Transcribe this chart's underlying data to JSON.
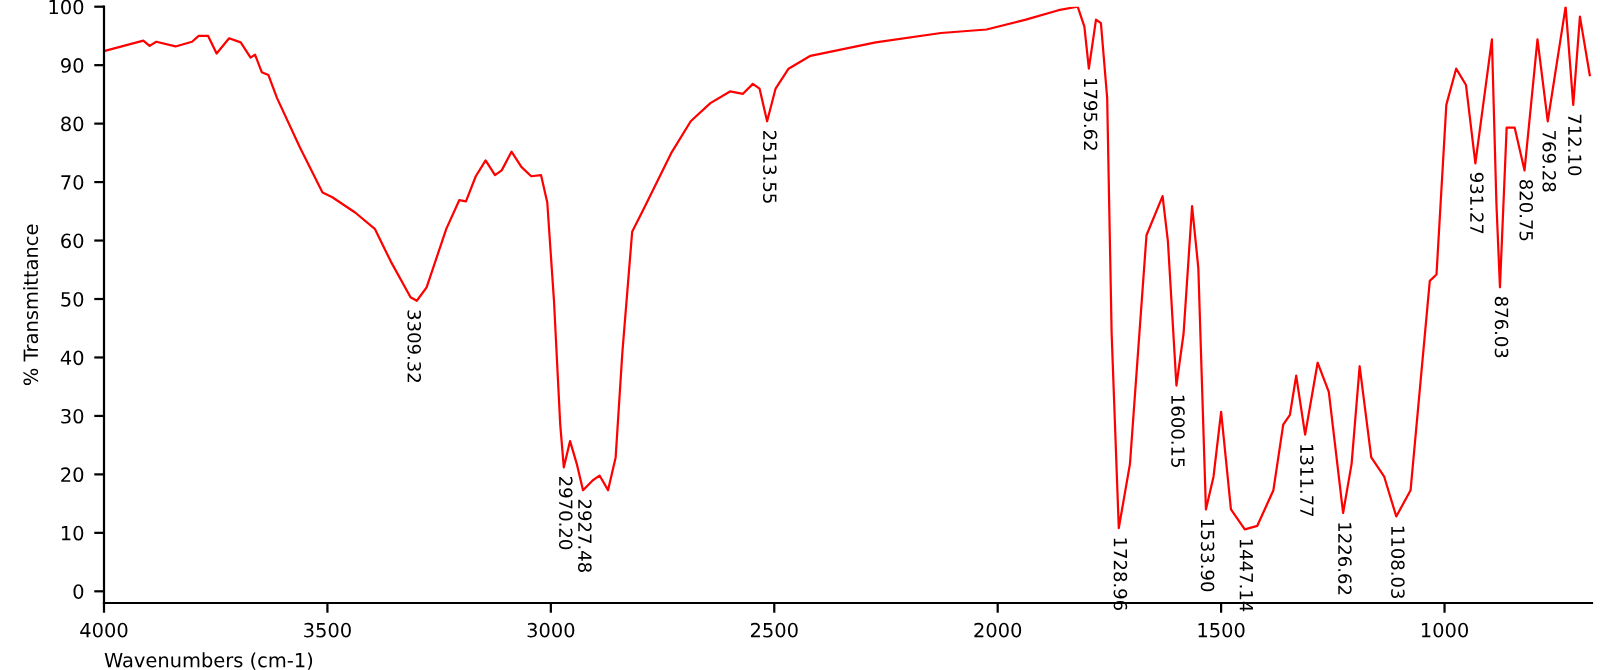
{
  "chart_data": {
    "type": "line",
    "xlabel": "Wavenumbers (cm-1)",
    "ylabel": "% Transmittance",
    "xlim": [
      4000,
      670
    ],
    "ylim": [
      -2,
      100
    ],
    "xticks": [
      4000,
      3500,
      3000,
      2500,
      2000,
      1500,
      1000
    ],
    "yticks": [
      0,
      10,
      20,
      30,
      40,
      50,
      60,
      70,
      80,
      90,
      100
    ],
    "grid": false,
    "legend": false,
    "marker": "none",
    "line_style": "solid",
    "series": [
      {
        "color": "#ff0000",
        "x": [
          4000,
          3912,
          3898,
          3883,
          3840,
          3803,
          3788,
          3767,
          3748,
          3720,
          3694,
          3672,
          3662,
          3647,
          3632,
          3613,
          3562,
          3511,
          3489,
          3438,
          3394,
          3358,
          3314,
          3300,
          3278,
          3234,
          3205,
          3190,
          3168,
          3146,
          3125,
          3110,
          3088,
          3066,
          3044,
          3022,
          3008,
          2993,
          2979,
          2971,
          2957,
          2942,
          2928,
          2906,
          2891,
          2872,
          2855,
          2840,
          2818,
          2789,
          2731,
          2687,
          2643,
          2599,
          2570,
          2548,
          2533,
          2516,
          2497,
          2468,
          2419,
          2273,
          2127,
          2025,
          1937,
          1864,
          1821,
          1806,
          1796,
          1780,
          1769,
          1755,
          1745,
          1729,
          1704,
          1667,
          1631,
          1619,
          1600,
          1584,
          1565,
          1551,
          1534,
          1517,
          1500,
          1478,
          1447,
          1419,
          1383,
          1361,
          1346,
          1332,
          1312,
          1284,
          1259,
          1227,
          1208,
          1190,
          1164,
          1135,
          1108,
          1076,
          1033,
          1018,
          996,
          974,
          952,
          931,
          894,
          884,
          876,
          861,
          843,
          821,
          792,
          769,
          729,
          712,
          697,
          675
        ],
        "values": [
          92.4,
          94.2,
          93.3,
          94,
          93.2,
          94,
          95,
          95,
          92,
          94.6,
          93.9,
          91.3,
          91.8,
          88.8,
          88.3,
          84.4,
          76,
          68.2,
          67.4,
          64.8,
          62,
          56.4,
          50.3,
          49.7,
          52,
          62,
          66.9,
          66.7,
          71,
          73.7,
          71.2,
          72,
          75.2,
          72.6,
          71,
          71.2,
          66.5,
          49.7,
          28.5,
          21.2,
          25.7,
          21.8,
          17.3,
          19,
          19.8,
          17.3,
          22.9,
          40.8,
          61.5,
          65.9,
          74.9,
          80.4,
          83.5,
          85.5,
          85.1,
          86.8,
          86,
          80.4,
          86,
          89.4,
          91.6,
          93.9,
          95.5,
          96.1,
          97.8,
          99.4,
          100,
          96.6,
          89.4,
          97.8,
          97.2,
          84.4,
          44.1,
          10.8,
          21.8,
          60.9,
          67.6,
          59.8,
          35.2,
          44.1,
          65.9,
          55.3,
          14,
          19.6,
          30.7,
          14,
          10.6,
          11.2,
          17.3,
          28.5,
          30.2,
          36.9,
          26.8,
          39.1,
          34.1,
          13.4,
          21.8,
          38.5,
          22.9,
          19.6,
          12.8,
          17.3,
          53.1,
          54.2,
          83.2,
          89.4,
          86.6,
          73.2,
          94.4,
          66.5,
          52,
          79.3,
          79.3,
          72,
          94.4,
          80.4,
          100,
          83.2,
          98.3,
          88.3
        ]
      }
    ],
    "annotations": [
      {
        "text": "3309.32",
        "x": 3309.32,
        "y": 49.7
      },
      {
        "text": "2970.20",
        "x": 2970.2,
        "y": 21.2
      },
      {
        "text": "2927.48",
        "x": 2927.48,
        "y": 17.3
      },
      {
        "text": "2513.55",
        "x": 2513.55,
        "y": 80.4
      },
      {
        "text": "1795.62",
        "x": 1795.62,
        "y": 89.4
      },
      {
        "text": "1728.96",
        "x": 1728.96,
        "y": 10.8
      },
      {
        "text": "1600.15",
        "x": 1600.15,
        "y": 35.2
      },
      {
        "text": "1533.90",
        "x": 1533.9,
        "y": 14
      },
      {
        "text": "1447.14",
        "x": 1447.14,
        "y": 10.6
      },
      {
        "text": "1311.77",
        "x": 1311.77,
        "y": 26.8
      },
      {
        "text": "1226.62",
        "x": 1226.62,
        "y": 13.4
      },
      {
        "text": "1108.03",
        "x": 1108.03,
        "y": 12.8
      },
      {
        "text": "931.27",
        "x": 931.27,
        "y": 73.2
      },
      {
        "text": "876.03",
        "x": 876.03,
        "y": 52
      },
      {
        "text": "820.75",
        "x": 820.75,
        "y": 72
      },
      {
        "text": "769.28",
        "x": 769.28,
        "y": 80.4
      },
      {
        "text": "712.10",
        "x": 712.1,
        "y": 83.2
      }
    ]
  }
}
